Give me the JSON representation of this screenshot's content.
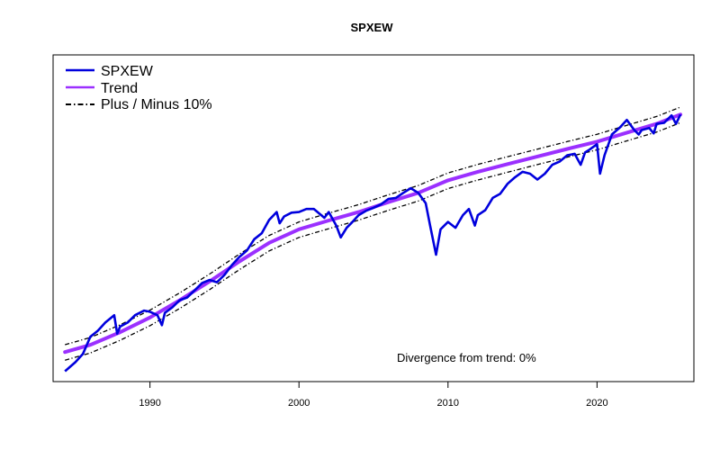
{
  "chart_data": {
    "type": "line",
    "title": "SPXEW",
    "xlabel": "",
    "ylabel": "",
    "x_ticks": [
      1990,
      2000,
      2010,
      2020
    ],
    "xlim": [
      1983.5,
      2026.5
    ],
    "log_scale_y": true,
    "y_axis_labels_shown": false,
    "ylim": [
      140,
      9500
    ],
    "grid": false,
    "legend_position": "top-left",
    "legend": [
      {
        "label": "SPXEW",
        "color": "#0000dd",
        "style": "solid"
      },
      {
        "label": "Trend",
        "color": "#9b30ff",
        "style": "solid"
      },
      {
        "label": "Plus / Minus 10%",
        "color": "#000000",
        "style": "dashdot"
      }
    ],
    "annotation": "Divergence from trend: 0%",
    "band_pct": 10,
    "series": [
      {
        "name": "SPXEW",
        "color": "#0000dd",
        "x": [
          1984.3,
          1985.0,
          1985.5,
          1986.0,
          1986.5,
          1987.0,
          1987.6,
          1987.8,
          1988.0,
          1988.5,
          1989.0,
          1989.6,
          1990.0,
          1990.5,
          1990.8,
          1991.0,
          1991.5,
          1992.0,
          1992.5,
          1993.0,
          1993.5,
          1994.0,
          1994.5,
          1995.0,
          1995.5,
          1996.0,
          1996.5,
          1997.0,
          1997.5,
          1998.0,
          1998.5,
          1998.7,
          1999.0,
          1999.5,
          2000.0,
          2000.5,
          2001.0,
          2001.7,
          2002.0,
          2002.5,
          2002.8,
          2003.2,
          2003.5,
          2004.0,
          2004.5,
          2005.0,
          2005.5,
          2006.0,
          2006.5,
          2007.0,
          2007.5,
          2008.0,
          2008.5,
          2008.8,
          2009.2,
          2009.5,
          2010.0,
          2010.5,
          2011.0,
          2011.4,
          2011.8,
          2012.0,
          2012.5,
          2013.0,
          2013.5,
          2014.0,
          2014.5,
          2015.0,
          2015.5,
          2016.0,
          2016.5,
          2017.0,
          2017.5,
          2018.0,
          2018.5,
          2018.9,
          2019.2,
          2019.5,
          2020.0,
          2020.2,
          2020.5,
          2021.0,
          2021.5,
          2022.0,
          2022.5,
          2022.8,
          2023.0,
          2023.5,
          2023.8,
          2024.0,
          2024.5,
          2025.0,
          2025.3,
          2025.6
        ],
        "y": [
          160,
          180,
          200,
          250,
          270,
          300,
          330,
          260,
          285,
          300,
          330,
          350,
          345,
          330,
          290,
          340,
          365,
          400,
          415,
          455,
          500,
          520,
          505,
          555,
          630,
          700,
          760,
          880,
          950,
          1130,
          1250,
          1080,
          1180,
          1240,
          1250,
          1300,
          1300,
          1160,
          1250,
          1050,
          900,
          1020,
          1080,
          1200,
          1270,
          1320,
          1380,
          1480,
          1500,
          1600,
          1700,
          1600,
          1400,
          1050,
          720,
          1000,
          1100,
          1020,
          1200,
          1300,
          1050,
          1200,
          1280,
          1500,
          1580,
          1800,
          1960,
          2100,
          2050,
          1900,
          2050,
          2300,
          2400,
          2600,
          2650,
          2300,
          2700,
          2800,
          3000,
          2050,
          2600,
          3400,
          3700,
          4100,
          3600,
          3400,
          3600,
          3700,
          3450,
          3900,
          3950,
          4350,
          3900,
          4400
        ]
      },
      {
        "name": "Trend",
        "color": "#9b30ff",
        "x": [
          1984.3,
          1986.0,
          1988.0,
          1990.0,
          1992.0,
          1994.0,
          1996.0,
          1998.0,
          2000.0,
          2002.0,
          2004.0,
          2006.0,
          2008.0,
          2010.0,
          2012.0,
          2014.0,
          2016.0,
          2018.0,
          2020.0,
          2022.0,
          2024.0,
          2025.6
        ],
        "y": [
          205,
          225,
          265,
          320,
          400,
          510,
          660,
          840,
          1000,
          1120,
          1250,
          1420,
          1600,
          1880,
          2100,
          2320,
          2560,
          2820,
          3100,
          3480,
          3900,
          4400
        ]
      }
    ]
  }
}
